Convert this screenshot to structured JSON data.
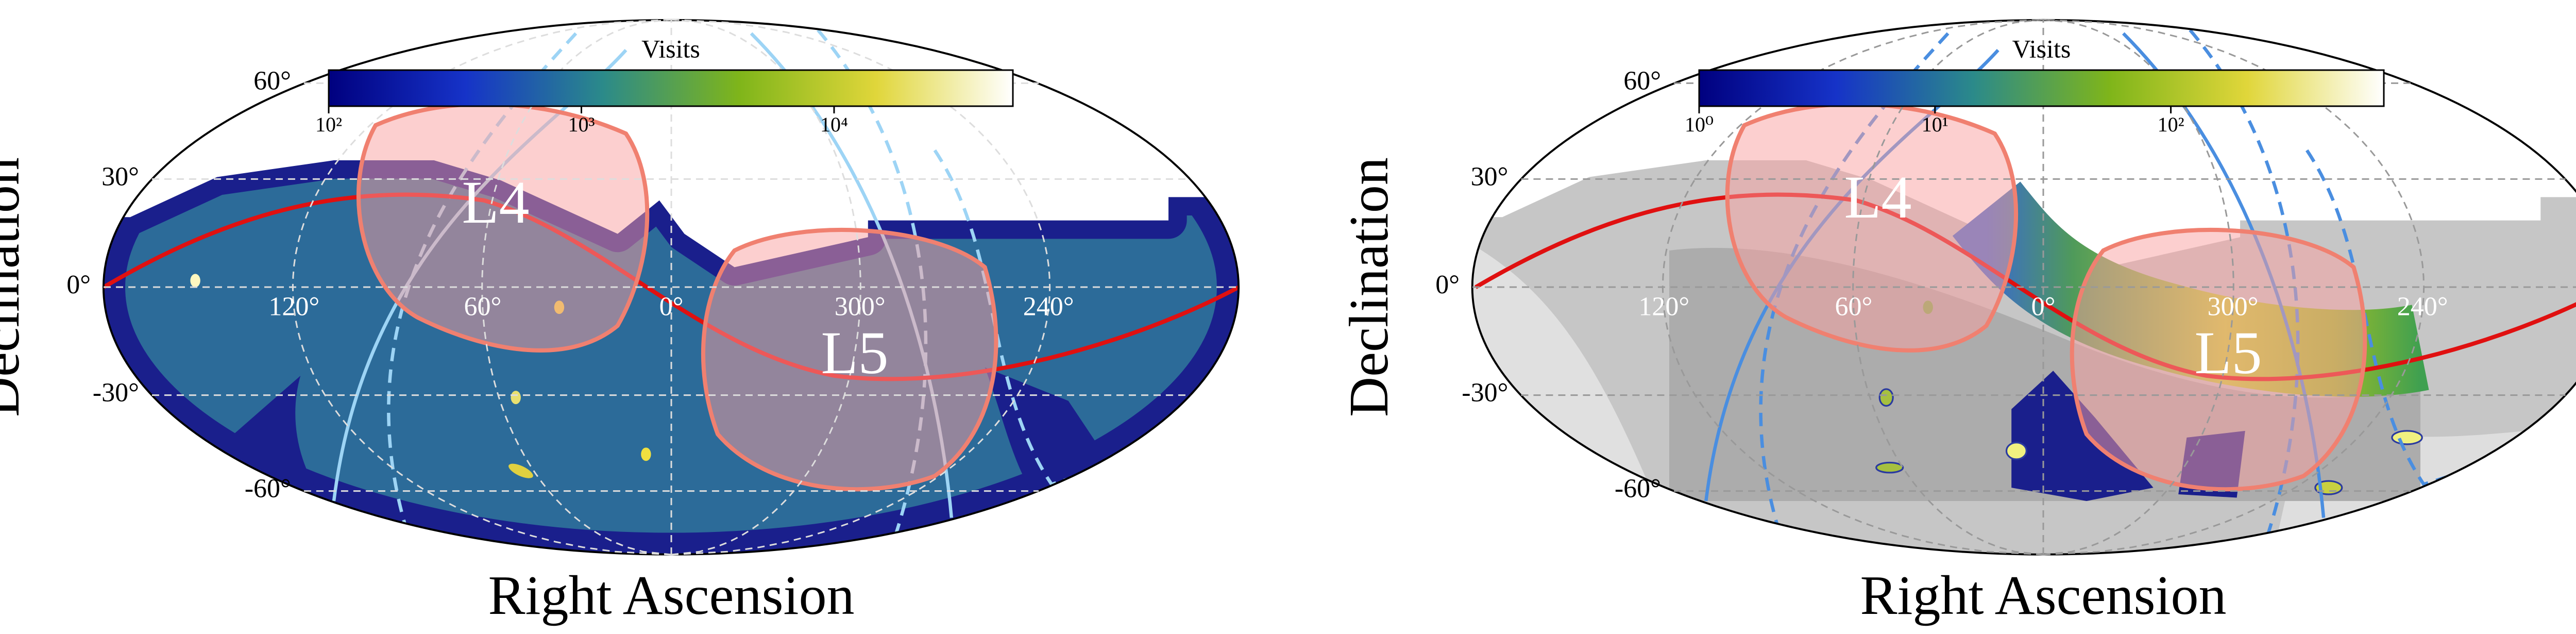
{
  "chart_data": [
    {
      "type": "skymap",
      "xlabel": "Right Ascension",
      "ylabel": "Declination",
      "colorbar_label": "Visits",
      "color_scale": "log",
      "clim": [
        100,
        51000
      ],
      "cticks": [
        {
          "value": 100,
          "label": "10²"
        },
        {
          "value": 1000,
          "label": "10³"
        },
        {
          "value": 10000,
          "label": "10⁴"
        }
      ],
      "xticks": [
        {
          "value": 120,
          "label": "120°"
        },
        {
          "value": 60,
          "label": "60°"
        },
        {
          "value": 0,
          "label": "0°"
        },
        {
          "value": 300,
          "label": "300°"
        },
        {
          "value": 240,
          "label": "240°"
        }
      ],
      "yticks": [
        {
          "value": 60,
          "label": "60°"
        },
        {
          "value": 30,
          "label": "30°"
        },
        {
          "value": 0,
          "label": "0°"
        },
        {
          "value": -30,
          "label": "-30°"
        },
        {
          "value": -60,
          "label": "-60°"
        }
      ],
      "grid": true,
      "annotations": [
        "L4",
        "L5"
      ]
    },
    {
      "type": "skymap",
      "xlabel": "Right Ascension",
      "ylabel": "Declination",
      "colorbar_label": "Visits",
      "color_scale": "log",
      "clim": [
        1,
        800
      ],
      "cticks": [
        {
          "value": 1,
          "label": "10⁰"
        },
        {
          "value": 10,
          "label": "10¹"
        },
        {
          "value": 100,
          "label": "10²"
        }
      ],
      "xticks": [
        {
          "value": 120,
          "label": "120°"
        },
        {
          "value": 60,
          "label": "60°"
        },
        {
          "value": 0,
          "label": "0°"
        },
        {
          "value": 300,
          "label": "300°"
        },
        {
          "value": 240,
          "label": "240°"
        }
      ],
      "yticks": [
        {
          "value": 60,
          "label": "60°"
        },
        {
          "value": 30,
          "label": "30°"
        },
        {
          "value": 0,
          "label": "0°"
        },
        {
          "value": -30,
          "label": "-30°"
        },
        {
          "value": -60,
          "label": "-60°"
        }
      ],
      "grid": true,
      "annotations": [
        "L4",
        "L5"
      ]
    }
  ]
}
